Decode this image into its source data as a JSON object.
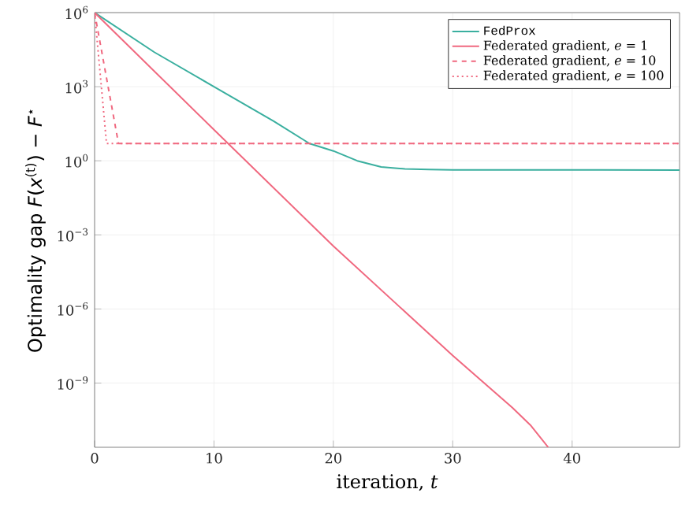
{
  "chart_data": {
    "type": "line",
    "xlabel": "iteration, *t*",
    "ylabel": "Optimality gap *F*(*x*$^{(t)}$) − *F*$^{⋆}$",
    "log": "y",
    "grid": true,
    "legend": "top right",
    "xlim": [
      0,
      49
    ],
    "ylim": [
      2.5e-12,
      1000000.0
    ],
    "xticks": [
      0,
      10,
      20,
      30,
      40
    ],
    "yticks": [
      {
        "value": 1e-09,
        "label": "10$^{−9}$"
      },
      {
        "value": 1e-06,
        "label": "10$^{−6}$"
      },
      {
        "value": 0.001,
        "label": "10$^{−3}$"
      },
      {
        "value": 1,
        "label": "10$^{0}$"
      },
      {
        "value": 1000.0,
        "label": "10$^{3}$"
      },
      {
        "value": 1000000.0,
        "label": "10$^{6}$"
      }
    ],
    "series": [
      {
        "name": "FedProx",
        "color": "#3aaf9f",
        "line_style": "solid",
        "x": [
          0,
          5,
          10,
          15,
          18,
          20,
          22,
          24,
          26,
          28,
          30,
          49
        ],
        "values": [
          1000000.0,
          25000,
          1000,
          40,
          5,
          2.5,
          1,
          0.56,
          0.47,
          0.44,
          0.43,
          0.42
        ]
      },
      {
        "name": "Federated gradient, *e* = 1",
        "color": "#f0687f",
        "line_style": "solid",
        "x": [
          0,
          10,
          20,
          30,
          35,
          36.5,
          38
        ],
        "values": [
          1000000.0,
          18,
          0.00035,
          1.3e-08,
          1e-10,
          2e-11,
          2.5e-12
        ]
      },
      {
        "name": "Federated gradient, *e* = 10",
        "color": "#f0687f",
        "line_style": "dashed",
        "x": [
          0,
          2,
          49
        ],
        "values": [
          1000000.0,
          5,
          5
        ]
      },
      {
        "name": "Federated gradient, *e* = 100",
        "color": "#f0687f",
        "line_style": "dotted",
        "x": [
          0,
          1,
          49
        ],
        "values": [
          1000000.0,
          5,
          5
        ]
      }
    ]
  }
}
